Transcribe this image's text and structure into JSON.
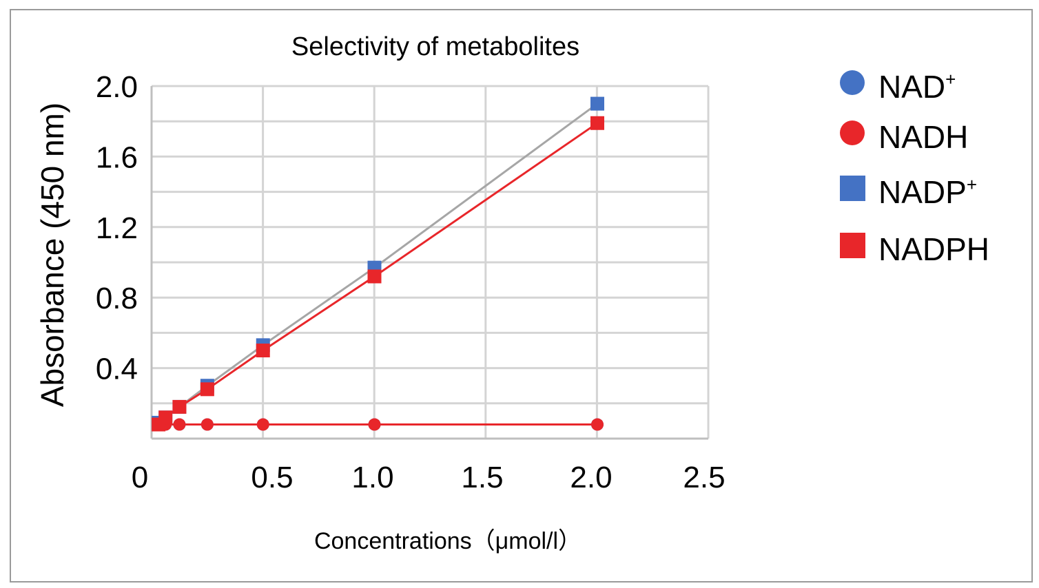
{
  "chart_data": {
    "type": "scatter",
    "title": "Selectivity of metabolites",
    "xlabel": "Concentrations（μmol/l）",
    "ylabel": "Absorbance (450 nm)",
    "xlim": [
      0,
      2.5
    ],
    "ylim": [
      0,
      2.0
    ],
    "x_ticks": [
      0,
      0.5,
      1.0,
      1.5,
      2.0,
      2.5
    ],
    "x_tick_labels": [
      "0",
      "0.5",
      "1.0",
      "1.5",
      "2.0",
      "2.5"
    ],
    "y_ticks": [
      0.4,
      0.8,
      1.2,
      1.6,
      2.0
    ],
    "y_tick_labels": [
      "0.4",
      "0.8",
      "1.2",
      "1.6",
      "2.0"
    ],
    "grid": true,
    "legend_position": "right",
    "series": [
      {
        "name": "NAD",
        "name_sup": "+",
        "marker": "circle",
        "color": "#4472c4",
        "line_color": "#a6a6a6",
        "x": [
          0.03125,
          0.0625,
          0.125,
          0.25,
          0.5,
          1.0,
          2.0
        ],
        "y": [
          0.08,
          0.08,
          0.08,
          0.08,
          0.08,
          0.08,
          0.08
        ]
      },
      {
        "name": "NADH",
        "name_sup": "",
        "marker": "circle",
        "color": "#e8262a",
        "line_color": "#e8262a",
        "x": [
          0.03125,
          0.0625,
          0.125,
          0.25,
          0.5,
          1.0,
          2.0
        ],
        "y": [
          0.08,
          0.08,
          0.08,
          0.08,
          0.08,
          0.08,
          0.08
        ]
      },
      {
        "name": "NADP",
        "name_sup": "+",
        "marker": "square",
        "color": "#4472c4",
        "line_color": "#a6a6a6",
        "x": [
          0.03125,
          0.0625,
          0.125,
          0.25,
          0.5,
          1.0,
          2.0
        ],
        "y": [
          0.09,
          0.12,
          0.18,
          0.3,
          0.53,
          0.97,
          1.9
        ]
      },
      {
        "name": "NADPH",
        "name_sup": "",
        "marker": "square",
        "color": "#e8262a",
        "line_color": "#e8262a",
        "x": [
          0.03125,
          0.0625,
          0.125,
          0.25,
          0.5,
          1.0,
          2.0
        ],
        "y": [
          0.08,
          0.12,
          0.18,
          0.28,
          0.5,
          0.92,
          1.79
        ]
      }
    ]
  }
}
